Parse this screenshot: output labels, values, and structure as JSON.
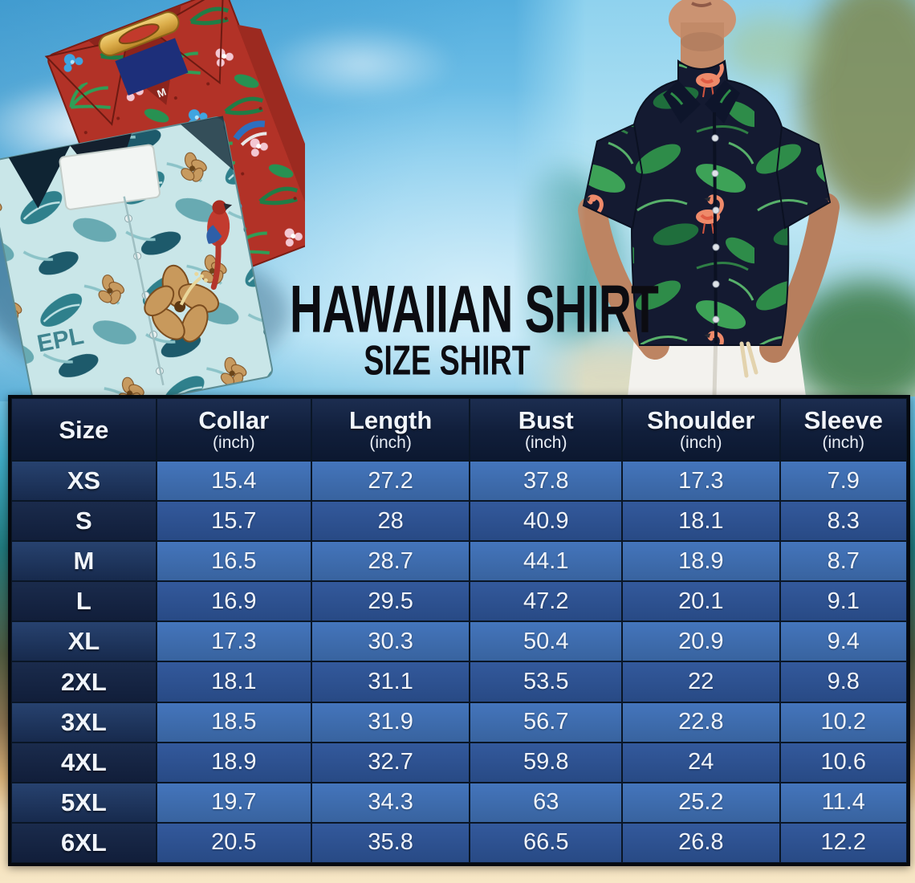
{
  "title": "HAWAIIAN SHIRT",
  "subtitle": "SIZE SHIRT",
  "photos": {
    "folded_shirts_size_tag": "M",
    "teal_shirt_print_text": "EPL"
  },
  "table": {
    "columns": [
      {
        "label": "Size",
        "unit": ""
      },
      {
        "label": "Collar",
        "unit": "(inch)"
      },
      {
        "label": "Length",
        "unit": "(inch)"
      },
      {
        "label": "Bust",
        "unit": "(inch)"
      },
      {
        "label": "Shoulder",
        "unit": "(inch)"
      },
      {
        "label": "Sleeve",
        "unit": "(inch)"
      }
    ],
    "rows": [
      [
        "XS",
        "15.4",
        "27.2",
        "37.8",
        "17.3",
        "7.9"
      ],
      [
        "S",
        "15.7",
        "28",
        "40.9",
        "18.1",
        "8.3"
      ],
      [
        "M",
        "16.5",
        "28.7",
        "44.1",
        "18.9",
        "8.7"
      ],
      [
        "L",
        "16.9",
        "29.5",
        "47.2",
        "20.1",
        "9.1"
      ],
      [
        "XL",
        "17.3",
        "30.3",
        "50.4",
        "20.9",
        "9.4"
      ],
      [
        "2XL",
        "18.1",
        "31.1",
        "53.5",
        "22",
        "9.8"
      ],
      [
        "3XL",
        "18.5",
        "31.9",
        "56.7",
        "22.8",
        "10.2"
      ],
      [
        "4XL",
        "18.9",
        "32.7",
        "59.8",
        "24",
        "10.6"
      ],
      [
        "5XL",
        "19.7",
        "34.3",
        "63",
        "25.2",
        "11.4"
      ],
      [
        "6XL",
        "20.5",
        "35.8",
        "66.5",
        "26.8",
        "12.2"
      ]
    ]
  },
  "chart_data": {
    "type": "table",
    "title": "HAWAIIAN SHIRT — SIZE SHIRT",
    "columns": [
      "Size",
      "Collar (inch)",
      "Length (inch)",
      "Bust (inch)",
      "Shoulder (inch)",
      "Sleeve (inch)"
    ],
    "rows": [
      [
        "XS",
        15.4,
        27.2,
        37.8,
        17.3,
        7.9
      ],
      [
        "S",
        15.7,
        28,
        40.9,
        18.1,
        8.3
      ],
      [
        "M",
        16.5,
        28.7,
        44.1,
        18.9,
        8.7
      ],
      [
        "L",
        16.9,
        29.5,
        47.2,
        20.1,
        9.1
      ],
      [
        "XL",
        17.3,
        30.3,
        50.4,
        20.9,
        9.4
      ],
      [
        "2XL",
        18.1,
        31.1,
        53.5,
        22,
        9.8
      ],
      [
        "3XL",
        18.5,
        31.9,
        56.7,
        22.8,
        10.2
      ],
      [
        "4XL",
        18.9,
        32.7,
        59.8,
        24,
        10.6
      ],
      [
        "5XL",
        19.7,
        34.3,
        63,
        25.2,
        11.4
      ],
      [
        "6XL",
        20.5,
        35.8,
        66.5,
        26.8,
        12.2
      ]
    ]
  },
  "colors": {
    "header_bg": "#101e3a",
    "row_light_value": "#3e6bae",
    "row_dark_value": "#2d5293",
    "size_col_light": "#1d3560",
    "size_col_dark": "#142443",
    "table_line": "#0a1626",
    "table_text": "#f1f5fb",
    "title_text": "#0c0c11",
    "sky_blue": "#7ec9ec",
    "sand": "#f0d9b0",
    "shirt_navy": "#141a31",
    "flamingo_coral": "#ef8a6a",
    "leaf_green": "#2e8c49"
  }
}
